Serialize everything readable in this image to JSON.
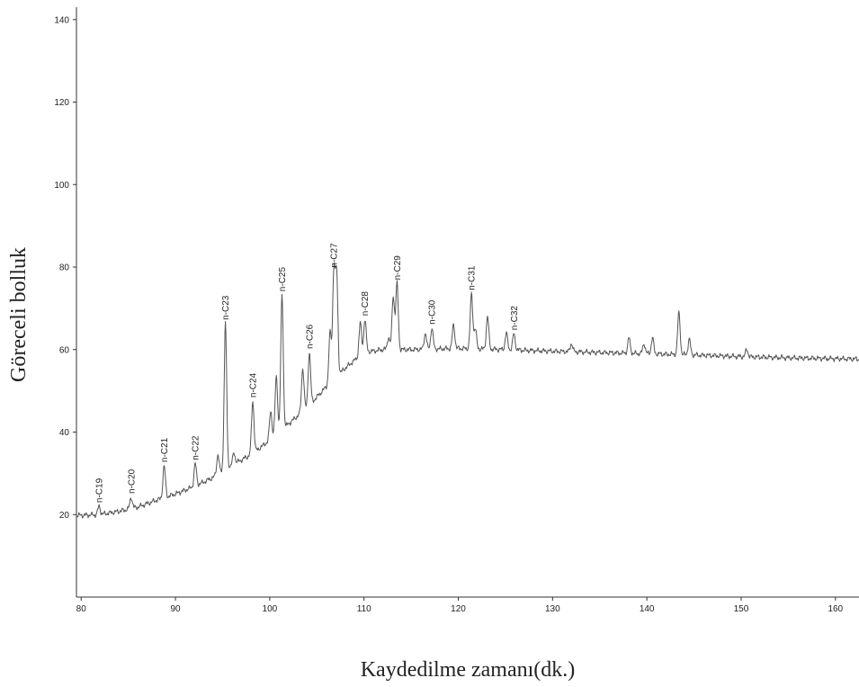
{
  "chart_data": {
    "type": "line",
    "title": "",
    "xlabel": "Kaydedilme zamanı(dk.)",
    "ylabel": "Göreceli bolluk",
    "xlim": [
      79.5,
      162.5
    ],
    "ylim": [
      0,
      143
    ],
    "x_ticks": [
      80,
      90,
      100,
      110,
      120,
      130,
      140,
      150,
      160
    ],
    "y_ticks": [
      20,
      40,
      60,
      80,
      100,
      120,
      140
    ],
    "grid": false,
    "series": [
      {
        "color": "#555555",
        "baseline": [
          [
            79.5,
            19.8
          ],
          [
            82,
            20.0
          ],
          [
            84,
            20.8
          ],
          [
            86,
            21.8
          ],
          [
            88,
            23.5
          ],
          [
            90,
            25.0
          ],
          [
            92,
            26.8
          ],
          [
            94,
            29.0
          ],
          [
            96,
            32.0
          ],
          [
            98,
            34.5
          ],
          [
            100,
            38.0
          ],
          [
            102,
            42.0
          ],
          [
            104,
            46.0
          ],
          [
            106,
            51.0
          ],
          [
            108,
            55.5
          ],
          [
            110,
            59.3
          ],
          [
            112,
            60.0
          ],
          [
            115,
            60.0
          ],
          [
            120,
            60.3
          ],
          [
            125,
            60.0
          ],
          [
            130,
            59.6
          ],
          [
            135,
            59.3
          ],
          [
            140,
            59.0
          ],
          [
            145,
            58.7
          ],
          [
            150,
            58.3
          ],
          [
            155,
            58.0
          ],
          [
            160,
            57.8
          ],
          [
            162.5,
            57.7
          ]
        ],
        "peaks": [
          [
            81.9,
            22.0
          ],
          [
            85.3,
            24.2
          ],
          [
            88.8,
            31.8
          ],
          [
            92.1,
            32.3
          ],
          [
            94.5,
            34.5
          ],
          [
            96.2,
            35.0
          ],
          [
            98.2,
            47.5
          ],
          [
            100.1,
            45.0
          ],
          [
            100.7,
            53.5
          ],
          [
            101.3,
            73.2
          ],
          [
            95.3,
            66.3
          ],
          [
            103.5,
            55.5
          ],
          [
            104.2,
            59.3
          ],
          [
            106.4,
            64.0
          ],
          [
            106.8,
            79.0
          ],
          [
            107.1,
            78.0
          ],
          [
            109.6,
            66.5
          ],
          [
            110.1,
            67.3
          ],
          [
            112.6,
            63.0
          ],
          [
            113.1,
            73.0
          ],
          [
            113.5,
            76.0
          ],
          [
            116.5,
            64.0
          ],
          [
            117.2,
            65.2
          ],
          [
            119.5,
            66.0
          ],
          [
            121.4,
            73.5
          ],
          [
            121.8,
            65.0
          ],
          [
            123.1,
            68.0
          ],
          [
            125.1,
            64.0
          ],
          [
            125.9,
            63.8
          ],
          [
            132.0,
            61.5
          ],
          [
            138.1,
            62.8
          ],
          [
            139.7,
            61.5
          ],
          [
            140.6,
            62.8
          ],
          [
            143.4,
            69.0
          ],
          [
            144.5,
            62.5
          ],
          [
            150.6,
            60.0
          ]
        ]
      }
    ],
    "annotations": [
      {
        "text": "n-C19",
        "x": 81.9,
        "y": 22.0
      },
      {
        "text": "n-C20",
        "x": 85.3,
        "y": 24.2
      },
      {
        "text": "n-C21",
        "x": 88.8,
        "y": 31.8
      },
      {
        "text": "n-C22",
        "x": 92.1,
        "y": 32.3
      },
      {
        "text": "n-C23",
        "x": 95.3,
        "y": 66.3
      },
      {
        "text": "n-C24",
        "x": 98.2,
        "y": 47.5
      },
      {
        "text": "n-C25",
        "x": 101.3,
        "y": 73.2
      },
      {
        "text": "n-C26",
        "x": 104.2,
        "y": 59.3
      },
      {
        "text": "n-C27",
        "x": 106.8,
        "y": 79.0
      },
      {
        "text": "n-C28",
        "x": 110.1,
        "y": 67.3
      },
      {
        "text": "n-C29",
        "x": 113.5,
        "y": 76.0
      },
      {
        "text": "n-C30",
        "x": 117.2,
        "y": 65.2
      },
      {
        "text": "n-C31",
        "x": 121.4,
        "y": 73.5
      },
      {
        "text": "n-C32",
        "x": 125.9,
        "y": 63.8
      }
    ]
  }
}
